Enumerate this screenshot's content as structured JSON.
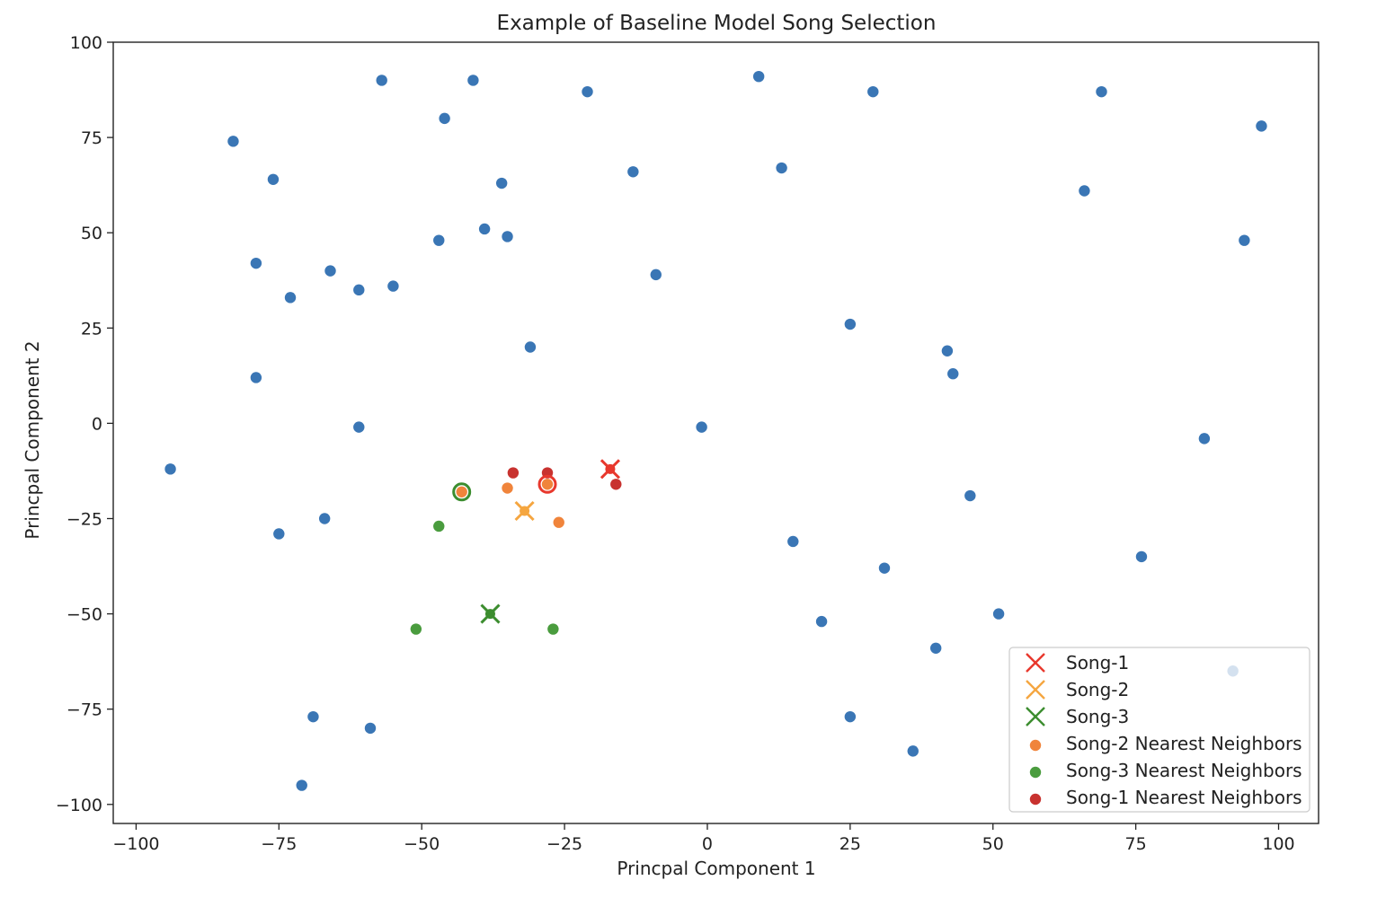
{
  "chart_data": {
    "type": "scatter",
    "title": "Example of Baseline Model Song Selection",
    "xlabel": "Princpal Component 1",
    "ylabel": "Princpal Component 2",
    "xlim": [
      -104,
      107
    ],
    "ylim": [
      -105,
      100
    ],
    "xticks": [
      -100,
      -75,
      -50,
      -25,
      0,
      25,
      50,
      75,
      100
    ],
    "yticks": [
      -100,
      -75,
      -50,
      -25,
      0,
      25,
      50,
      75,
      100
    ],
    "xtick_labels": [
      "−100",
      "−75",
      "−50",
      "−25",
      "0",
      "25",
      "50",
      "75",
      "100"
    ],
    "ytick_labels": [
      "−100",
      "−75",
      "−50",
      "−25",
      "0",
      "25",
      "50",
      "75",
      "100"
    ],
    "grid": false,
    "legend_position": "lower-right",
    "background_points": {
      "color": "#3a76b5",
      "points": [
        [
          -57,
          90
        ],
        [
          -41,
          90
        ],
        [
          -21,
          87
        ],
        [
          9,
          91
        ],
        [
          29,
          87
        ],
        [
          69,
          87
        ],
        [
          97,
          78
        ],
        [
          -83,
          74
        ],
        [
          -46,
          80
        ],
        [
          -13,
          66
        ],
        [
          13,
          67
        ],
        [
          -76,
          64
        ],
        [
          -36,
          63
        ],
        [
          66,
          61
        ],
        [
          -39,
          51
        ],
        [
          -35,
          49
        ],
        [
          -47,
          48
        ],
        [
          94,
          48
        ],
        [
          -79,
          42
        ],
        [
          -66,
          40
        ],
        [
          -9,
          39
        ],
        [
          -61,
          35
        ],
        [
          -55,
          36
        ],
        [
          -73,
          33
        ],
        [
          25,
          26
        ],
        [
          -31,
          20
        ],
        [
          42,
          19
        ],
        [
          43,
          13
        ],
        [
          -79,
          12
        ],
        [
          -61,
          -1
        ],
        [
          -1,
          -1
        ],
        [
          87,
          -4
        ],
        [
          -94,
          -12
        ],
        [
          46,
          -19
        ],
        [
          -67,
          -25
        ],
        [
          -75,
          -29
        ],
        [
          15,
          -31
        ],
        [
          76,
          -35
        ],
        [
          31,
          -38
        ],
        [
          51,
          -50
        ],
        [
          20,
          -52
        ],
        [
          40,
          -59
        ],
        [
          -69,
          -77
        ],
        [
          -59,
          -80
        ],
        [
          25,
          -77
        ],
        [
          36,
          -86
        ],
        [
          -71,
          -95
        ]
      ],
      "faded_points": [
        [
          92,
          -65
        ]
      ]
    },
    "series": [
      {
        "name": "Song-1",
        "marker": "x",
        "color": "#e8382d",
        "points": [
          [
            -17,
            -12
          ]
        ]
      },
      {
        "name": "Song-2",
        "marker": "x",
        "color": "#f5a640",
        "points": [
          [
            -32,
            -23
          ]
        ]
      },
      {
        "name": "Song-3",
        "marker": "x",
        "color": "#3c8d2f",
        "points": [
          [
            -38,
            -50
          ]
        ]
      },
      {
        "name": "Song-2 Nearest Neighbors",
        "marker": "o",
        "color": "#f0843b",
        "points": [
          [
            -35,
            -17
          ],
          [
            -28,
            -16
          ],
          [
            -26,
            -26
          ],
          [
            -43,
            -18
          ]
        ]
      },
      {
        "name": "Song-3 Nearest Neighbors",
        "marker": "o",
        "color": "#4a9c3e",
        "points": [
          [
            -47,
            -27
          ],
          [
            -51,
            -54
          ],
          [
            -27,
            -54
          ]
        ]
      },
      {
        "name": "Song-1 Nearest Neighbors",
        "marker": "o",
        "color": "#c8322f",
        "points": [
          [
            -34,
            -13
          ],
          [
            -28,
            -13
          ],
          [
            -16,
            -16
          ]
        ]
      }
    ],
    "ring_markers": [
      {
        "point": [
          -43,
          -18
        ],
        "color": "#3c8d2f"
      },
      {
        "point": [
          -28,
          -16
        ],
        "color": "#e8382d"
      }
    ]
  }
}
